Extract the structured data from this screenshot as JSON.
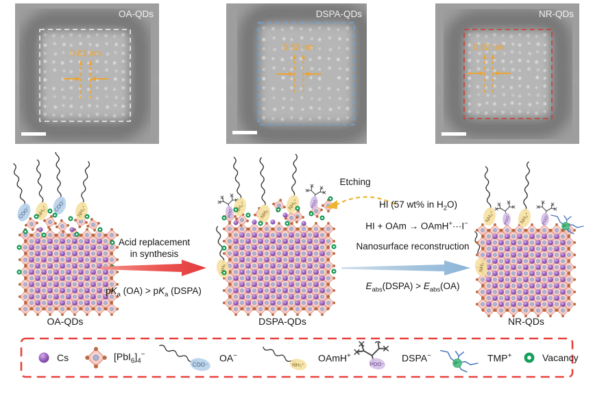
{
  "panels": [
    {
      "label": "OA-QDs",
      "annotation": "0.62 nm",
      "box_color": "#f0f0f0"
    },
    {
      "label": "DSPA-QDs",
      "annotation": "0.62 nm",
      "box_color": "#6fa3d2"
    },
    {
      "label": "NR-QDs",
      "annotation": "0.62 nm",
      "box_color": "#cf3a2e"
    }
  ],
  "annotation_color": "#eda433",
  "scheme": {
    "qd_labels": [
      "OA-QDs",
      "DSPA-QDs",
      "NR-QDs"
    ],
    "step1": {
      "title_line1": "Acid replacement",
      "title_line2": "in synthesis",
      "condition_html": "p<i>K</i><sub>a</sub> (OA) &gt; p<i>K</i><sub>a</sub> (DSPA)",
      "arrow_color": "#e64040"
    },
    "step2": {
      "etching_label": "Etching",
      "reagent_html": "HI (57 wt% in H<sub>2</sub>O)",
      "reaction_html": "HI + OAm → OAmH<sup>+</sup>···I<sup>−</sup>",
      "title": "Nanosurface reconstruction",
      "condition_html": "<i>E</i><sub>abs</sub>(DSPA) &gt; <i>E</i><sub>abs</sub>(OA)",
      "arrow_color": "#8fb6d9"
    },
    "pods": {
      "coo": "COO⁻",
      "nh3": "NH₃⁺",
      "nh2": "NH₂",
      "poo": "POO⁻",
      "p": "P⁺"
    }
  },
  "legend": {
    "border_color": "#e8413c",
    "items": [
      {
        "id": "cs",
        "label_html": "Cs"
      },
      {
        "id": "pbi6",
        "label_html": "[PbI<sub>6</sub>]<sub>4</sub><sup>−</sup>"
      },
      {
        "id": "oa",
        "label_html": "OA<sup>−</sup>"
      },
      {
        "id": "oamh",
        "label_html": "OAmH<sup>+</sup>"
      },
      {
        "id": "dspa",
        "label_html": "DSPA<sup>−</sup>"
      },
      {
        "id": "tmp",
        "label_html": "TMP<sup>+</sup>"
      },
      {
        "id": "vacancy",
        "label_html": "Vacancy"
      }
    ]
  }
}
